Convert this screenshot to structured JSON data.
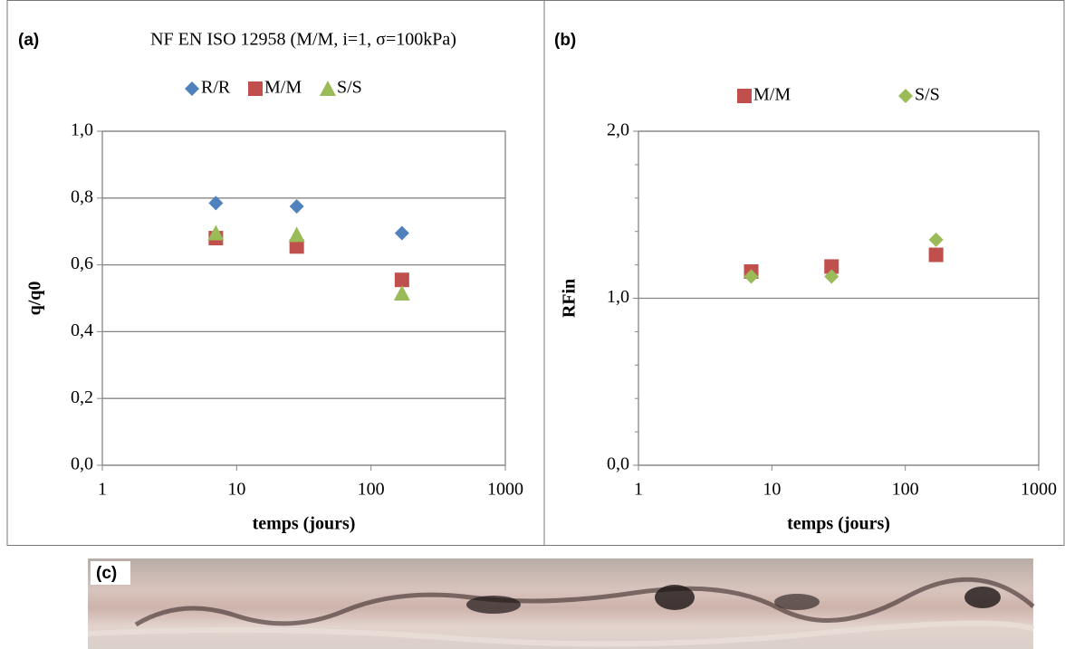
{
  "chart_data": [
    {
      "type": "scatter",
      "panel_label": "(a)",
      "title": "NF EN ISO 12958 (M/M, i=1, σ=100kPa)",
      "x_label": "temps (jours)",
      "y_label": "q/q0",
      "xscale": "log",
      "xlim": [
        1,
        1000
      ],
      "xticks": [
        1,
        10,
        100,
        1000
      ],
      "ylim": [
        0,
        1
      ],
      "yticks": [
        {
          "value": 0,
          "label": "0,0"
        },
        {
          "value": 0.2,
          "label": "0,2"
        },
        {
          "value": 0.4,
          "label": "0,4"
        },
        {
          "value": 0.6,
          "label": "0,6"
        },
        {
          "value": 0.8,
          "label": "0,8"
        },
        {
          "value": 1,
          "label": "1,0"
        }
      ],
      "grid": true,
      "series": [
        {
          "name": "R/R",
          "color": "#4f81bd",
          "marker": "diamond",
          "x": [
            7,
            28,
            170
          ],
          "values": [
            0.785,
            0.775,
            0.695
          ]
        },
        {
          "name": "M/M",
          "color": "#c0504d",
          "marker": "square",
          "x": [
            7,
            28,
            170
          ],
          "values": [
            0.68,
            0.655,
            0.555
          ]
        },
        {
          "name": "S/S",
          "color": "#9bbb59",
          "marker": "triangle",
          "x": [
            7,
            28,
            170
          ],
          "values": [
            0.695,
            0.69,
            0.515
          ]
        }
      ]
    },
    {
      "type": "scatter",
      "panel_label": "(b)",
      "x_label": "temps (jours)",
      "y_label": "RFin",
      "xscale": "log",
      "xlim": [
        1,
        1000
      ],
      "xticks": [
        1,
        10,
        100,
        1000
      ],
      "ylim": [
        0,
        2
      ],
      "yticks": [
        {
          "value": 0,
          "label": "0,0"
        },
        {
          "value": 1,
          "label": "1,0"
        },
        {
          "value": 2,
          "label": "2,0"
        }
      ],
      "yminor_ticks": [
        0.2,
        0.4,
        0.6,
        0.8,
        1.2,
        1.4,
        1.6,
        1.8
      ],
      "grid": true,
      "series": [
        {
          "name": "M/M",
          "color": "#c0504d",
          "marker": "square",
          "x": [
            7,
            28,
            170
          ],
          "values": [
            1.16,
            1.19,
            1.26
          ]
        },
        {
          "name": "S/S",
          "color": "#9bbb59",
          "marker": "diamond",
          "x": [
            7,
            28,
            170
          ],
          "values": [
            1.13,
            1.13,
            1.35
          ]
        }
      ]
    }
  ],
  "photo": {
    "label": "(c)"
  }
}
